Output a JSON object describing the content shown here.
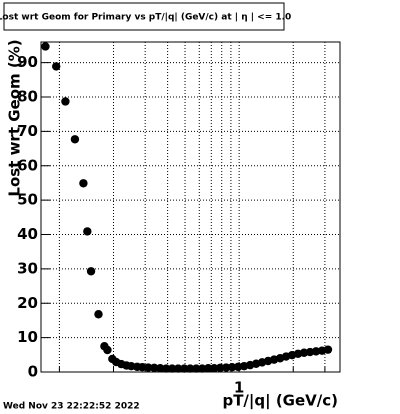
{
  "chart_data": {
    "type": "scatter",
    "title": "Lost wrt Geom for Primary vs pT/|q| (GeV/c) at | η | <= 1.0",
    "x_label": "pT/|q| (GeV/c)",
    "y_label": "Lost wrt Geom (%)",
    "footer": "Wed Nov 23 22:22:52 2022",
    "color": "#000000",
    "log_x": true,
    "grid": true,
    "xlim": [
      0.079,
      3.64
    ],
    "ylim": [
      0,
      96
    ],
    "xticks": [
      1
    ],
    "xminor_ticks": [
      0.1,
      0.2,
      0.3,
      0.4,
      0.5,
      0.6,
      0.7,
      0.8,
      0.9,
      2,
      3
    ],
    "yticks": [
      0,
      10,
      20,
      30,
      40,
      50,
      60,
      70,
      80,
      90
    ],
    "x": [
      0.0836,
      0.096,
      0.108,
      0.122,
      0.136,
      0.143,
      0.15,
      0.165,
      0.178,
      0.185,
      0.197,
      0.207,
      0.221,
      0.236,
      0.251,
      0.271,
      0.289,
      0.312,
      0.337,
      0.364,
      0.393,
      0.424,
      0.458,
      0.495,
      0.534,
      0.577,
      0.623,
      0.673,
      0.726,
      0.784,
      0.847,
      0.914,
      0.987,
      1.066,
      1.151,
      1.243,
      1.342,
      1.449,
      1.565,
      1.69,
      1.825,
      1.97,
      2.127,
      2.297,
      2.48,
      2.678,
      2.892,
      3.12
    ],
    "values": [
      94.7,
      88.9,
      78.7,
      67.7,
      54.9,
      40.9,
      29.3,
      16.8,
      7.5,
      6.4,
      3.8,
      2.9,
      2.3,
      1.9,
      1.7,
      1.5,
      1.4,
      1.3,
      1.2,
      1.1,
      1.0,
      1.0,
      1.0,
      1.0,
      1.0,
      1.0,
      1.0,
      1.1,
      1.1,
      1.2,
      1.3,
      1.4,
      1.5,
      1.7,
      2.0,
      2.4,
      2.8,
      3.2,
      3.6,
      4.0,
      4.5,
      4.9,
      5.3,
      5.6,
      5.8,
      6.0,
      6.2,
      6.5
    ]
  }
}
